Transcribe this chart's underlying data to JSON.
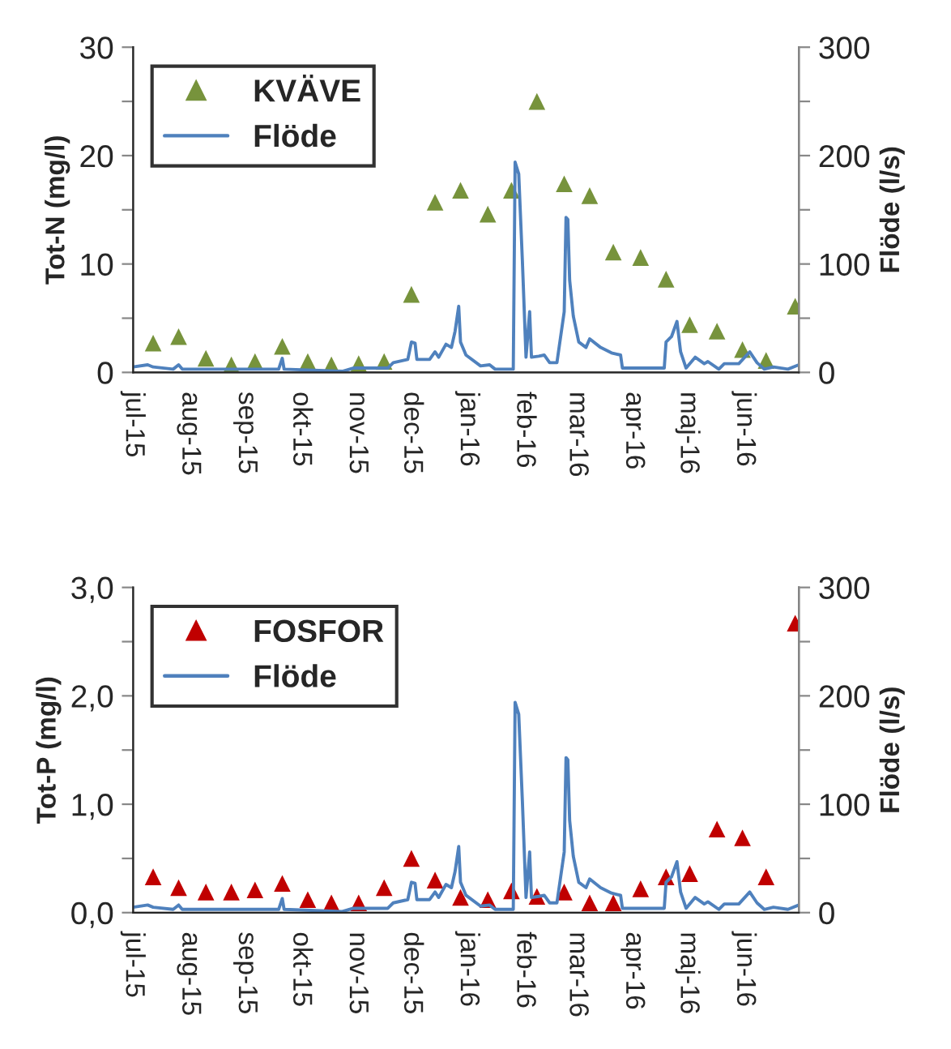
{
  "chart_data": [
    {
      "type": "scatter",
      "ylabel": "Tot-N (mg/l)",
      "y2label": "Flöde (l/s)",
      "legend": "top left",
      "marker": "triangle",
      "grid": false,
      "xlim": [
        "2015-07-01",
        "2016-07-01"
      ],
      "xticks": [
        {
          "value": "2015-07-01",
          "label": "jul-15"
        },
        {
          "value": "2015-08-01",
          "label": "aug-15"
        },
        {
          "value": "2015-09-01",
          "label": "sep-15"
        },
        {
          "value": "2015-10-01",
          "label": "okt-15"
        },
        {
          "value": "2015-11-01",
          "label": "nov-15"
        },
        {
          "value": "2015-12-01",
          "label": "dec-15"
        },
        {
          "value": "2016-01-01",
          "label": "jan-16"
        },
        {
          "value": "2016-02-01",
          "label": "feb-16"
        },
        {
          "value": "2016-03-01",
          "label": "mar-16"
        },
        {
          "value": "2016-04-01",
          "label": "apr-16"
        },
        {
          "value": "2016-05-01",
          "label": "maj-16"
        },
        {
          "value": "2016-06-01",
          "label": "jun-16"
        },
        {
          "value": "2016-07-01",
          "label": null
        }
      ],
      "ylim": [
        0,
        30
      ],
      "yticks": [
        0,
        {
          "value": 5,
          "label": null
        },
        10,
        {
          "value": 15,
          "label": null
        },
        20,
        {
          "value": 25,
          "label": null
        },
        30
      ],
      "y2lim": [
        0,
        300
      ],
      "y2ticks": [
        0,
        {
          "value": 50,
          "label": null
        },
        100,
        {
          "value": 150,
          "label": null
        },
        200,
        {
          "value": 250,
          "label": null
        },
        300
      ],
      "series": [
        {
          "name": "KVÄVE",
          "color": "#77933c",
          "x": [
            "2015-07-12",
            "2015-07-26",
            "2015-08-10",
            "2015-08-24",
            "2015-09-06",
            "2015-09-21",
            "2015-10-05",
            "2015-10-18",
            "2015-11-02",
            "2015-11-16",
            "2015-12-01",
            "2015-12-14",
            "2015-12-28",
            "2016-01-12",
            "2016-01-25",
            "2016-02-08",
            "2016-02-23",
            "2016-03-08",
            "2016-03-21",
            "2016-04-05",
            "2016-04-19",
            "2016-05-02",
            "2016-05-17",
            "2016-05-31",
            "2016-06-13",
            "2016-06-29"
          ],
          "values": [
            2.7,
            3.3,
            1.3,
            0.7,
            1.0,
            2.4,
            1.0,
            0.7,
            0.8,
            1.0,
            7.2,
            15.7,
            16.8,
            14.6,
            16.8,
            25.0,
            17.4,
            16.3,
            11.1,
            10.6,
            8.6,
            4.4,
            3.8,
            2.1,
            1.1,
            6.1
          ]
        },
        {
          "name": "Flöde",
          "type": "line",
          "axis": "y2",
          "color": "#4f81bd",
          "marker": "none",
          "x": [
            "2015-07-01",
            "2015-07-09",
            "2015-07-12",
            "2015-07-23",
            "2015-07-26",
            "2015-07-28",
            "2015-09-19",
            "2015-09-21",
            "2015-09-22",
            "2015-10-24",
            "2015-10-30",
            "2015-11-18",
            "2015-11-21",
            "2015-11-29",
            "2015-12-01",
            "2015-12-03",
            "2015-12-04",
            "2015-12-11",
            "2015-12-14",
            "2015-12-16",
            "2015-12-20",
            "2015-12-23",
            "2015-12-25",
            "2015-12-27",
            "2015-12-28",
            "2015-12-31",
            "2016-01-08",
            "2016-01-13",
            "2016-01-16",
            "2016-01-26",
            "2016-01-27",
            "2016-01-29",
            "2016-01-31",
            "2016-02-02",
            "2016-02-04",
            "2016-02-05",
            "2016-02-09",
            "2016-02-12",
            "2016-02-15",
            "2016-02-19",
            "2016-02-23",
            "2016-02-24",
            "2016-02-25",
            "2016-02-26",
            "2016-02-28",
            "2016-03-02",
            "2016-03-06",
            "2016-03-08",
            "2016-03-14",
            "2016-03-20",
            "2016-03-25",
            "2016-03-26",
            "2016-04-18",
            "2016-04-19",
            "2016-04-22",
            "2016-04-25",
            "2016-04-27",
            "2016-04-30",
            "2016-05-05",
            "2016-05-10",
            "2016-05-12",
            "2016-05-18",
            "2016-05-21",
            "2016-05-29",
            "2016-06-04",
            "2016-06-08",
            "2016-06-12",
            "2016-06-17",
            "2016-06-25",
            "2016-07-01"
          ],
          "values": [
            5,
            7,
            5,
            3,
            7,
            3,
            3,
            13,
            3,
            1,
            4,
            4,
            9,
            12,
            28,
            27,
            12,
            12,
            19,
            14,
            26,
            23,
            38,
            61,
            28,
            16,
            6,
            7,
            3,
            3,
            194,
            183,
            103,
            14,
            56,
            14,
            15,
            16,
            9,
            9,
            56,
            143,
            141,
            85,
            52,
            28,
            23,
            31,
            23,
            18,
            16,
            4,
            4,
            28,
            33,
            47,
            19,
            4,
            14,
            8,
            10,
            3,
            8,
            8,
            19,
            9,
            3,
            5,
            3,
            7
          ]
        }
      ]
    },
    {
      "type": "scatter",
      "ylabel": "Tot-P (mg/l)",
      "y2label": "Flöde (l/s)",
      "legend": "top left",
      "marker": "triangle",
      "grid": false,
      "xlim": [
        "2015-07-01",
        "2016-07-01"
      ],
      "xticks": [
        {
          "value": "2015-07-01",
          "label": "jul-15"
        },
        {
          "value": "2015-08-01",
          "label": "aug-15"
        },
        {
          "value": "2015-09-01",
          "label": "sep-15"
        },
        {
          "value": "2015-10-01",
          "label": "okt-15"
        },
        {
          "value": "2015-11-01",
          "label": "nov-15"
        },
        {
          "value": "2015-12-01",
          "label": "dec-15"
        },
        {
          "value": "2016-01-01",
          "label": "jan-16"
        },
        {
          "value": "2016-02-01",
          "label": "feb-16"
        },
        {
          "value": "2016-03-01",
          "label": "mar-16"
        },
        {
          "value": "2016-04-01",
          "label": "apr-16"
        },
        {
          "value": "2016-05-01",
          "label": "maj-16"
        },
        {
          "value": "2016-06-01",
          "label": "jun-16"
        },
        {
          "value": "2016-07-01",
          "label": null
        }
      ],
      "ylim": [
        0,
        3
      ],
      "yticks": [
        {
          "value": 0,
          "label": "0,0"
        },
        {
          "value": 0.5,
          "label": null
        },
        {
          "value": 1,
          "label": "1,0"
        },
        {
          "value": 1.5,
          "label": null
        },
        {
          "value": 2,
          "label": "2,0"
        },
        {
          "value": 2.5,
          "label": null
        },
        {
          "value": 3,
          "label": "3,0"
        }
      ],
      "y2lim": [
        0,
        300
      ],
      "y2ticks": [
        0,
        {
          "value": 50,
          "label": null
        },
        100,
        {
          "value": 150,
          "label": null
        },
        200,
        {
          "value": 250,
          "label": null
        },
        300
      ],
      "series": [
        {
          "name": "FOSFOR",
          "color": "#c00000",
          "x": [
            "2015-07-12",
            "2015-07-26",
            "2015-08-10",
            "2015-08-24",
            "2015-09-06",
            "2015-09-21",
            "2015-10-05",
            "2015-10-18",
            "2015-11-02",
            "2015-11-16",
            "2015-12-01",
            "2015-12-14",
            "2015-12-28",
            "2016-01-12",
            "2016-01-25",
            "2016-02-08",
            "2016-02-23",
            "2016-03-08",
            "2016-03-21",
            "2016-04-05",
            "2016-04-19",
            "2016-05-02",
            "2016-05-17",
            "2016-05-31",
            "2016-06-13",
            "2016-06-29"
          ],
          "values": [
            0.33,
            0.23,
            0.19,
            0.19,
            0.21,
            0.27,
            0.12,
            0.09,
            0.09,
            0.23,
            0.5,
            0.3,
            0.14,
            0.12,
            0.2,
            0.15,
            0.19,
            0.09,
            0.09,
            0.22,
            0.33,
            0.36,
            0.77,
            0.69,
            0.33,
            2.67
          ]
        },
        {
          "name": "Flöde",
          "type": "line",
          "axis": "y2",
          "color": "#4f81bd",
          "marker": "none",
          "x": [
            "2015-07-01",
            "2015-07-09",
            "2015-07-12",
            "2015-07-23",
            "2015-07-26",
            "2015-07-28",
            "2015-09-19",
            "2015-09-21",
            "2015-09-22",
            "2015-10-24",
            "2015-10-30",
            "2015-11-18",
            "2015-11-21",
            "2015-11-29",
            "2015-12-01",
            "2015-12-03",
            "2015-12-04",
            "2015-12-11",
            "2015-12-14",
            "2015-12-16",
            "2015-12-20",
            "2015-12-23",
            "2015-12-25",
            "2015-12-27",
            "2015-12-28",
            "2015-12-31",
            "2016-01-08",
            "2016-01-13",
            "2016-01-16",
            "2016-01-26",
            "2016-01-27",
            "2016-01-29",
            "2016-01-31",
            "2016-02-02",
            "2016-02-04",
            "2016-02-05",
            "2016-02-09",
            "2016-02-12",
            "2016-02-15",
            "2016-02-19",
            "2016-02-23",
            "2016-02-24",
            "2016-02-25",
            "2016-02-26",
            "2016-02-28",
            "2016-03-02",
            "2016-03-06",
            "2016-03-08",
            "2016-03-14",
            "2016-03-20",
            "2016-03-25",
            "2016-03-26",
            "2016-04-18",
            "2016-04-19",
            "2016-04-22",
            "2016-04-25",
            "2016-04-27",
            "2016-04-30",
            "2016-05-05",
            "2016-05-10",
            "2016-05-12",
            "2016-05-18",
            "2016-05-21",
            "2016-05-29",
            "2016-06-04",
            "2016-06-08",
            "2016-06-12",
            "2016-06-17",
            "2016-06-25",
            "2016-07-01"
          ],
          "values": [
            5,
            7,
            5,
            3,
            7,
            3,
            3,
            13,
            3,
            1,
            4,
            4,
            9,
            12,
            28,
            27,
            12,
            12,
            19,
            14,
            26,
            23,
            38,
            61,
            28,
            16,
            6,
            7,
            3,
            3,
            194,
            183,
            103,
            14,
            56,
            14,
            15,
            16,
            9,
            9,
            56,
            143,
            141,
            85,
            52,
            28,
            23,
            31,
            23,
            18,
            16,
            4,
            4,
            28,
            33,
            47,
            19,
            4,
            14,
            8,
            10,
            3,
            8,
            8,
            19,
            9,
            3,
            5,
            3,
            7
          ]
        }
      ]
    }
  ]
}
